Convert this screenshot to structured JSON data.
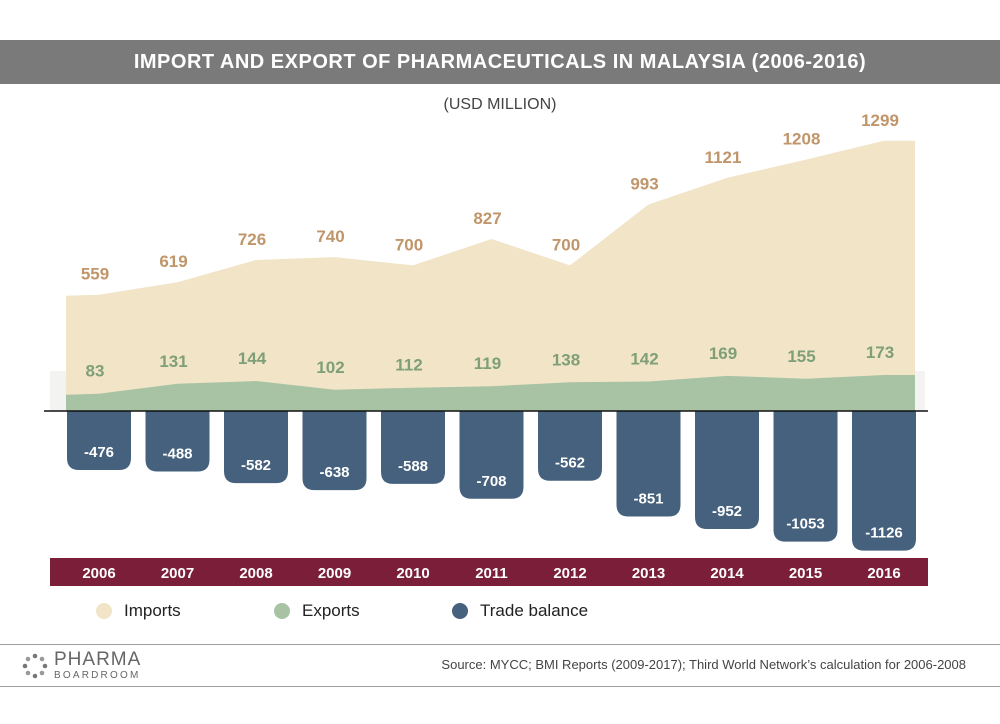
{
  "title": "IMPORT AND EXPORT OF PHARMACEUTICALS IN MALAYSIA (2006-2016)",
  "subtitle": "(USD MILLION)",
  "legend": [
    {
      "label": "Imports",
      "color": "#f1e4c7"
    },
    {
      "label": "Exports",
      "color": "#a7c3a4"
    },
    {
      "label": "Trade balance",
      "color": "#45617d"
    }
  ],
  "logo": {
    "top": "PHARMA",
    "bottom": "BOARDROOM"
  },
  "source": "Source:  MYCC; BMI Reports (2009-2017); Third World Network’s calculation for 2006-2008",
  "colors": {
    "imports": "#f1e4c7",
    "exports": "#a7c3a4",
    "balance": "#45617d",
    "imports_label": "#c1956a",
    "exports_label": "#7e9f78",
    "year_bar": "#7b1e3a",
    "title_bar": "#7a7a7a"
  },
  "chart_data": {
    "type": "area",
    "categories": [
      "2006",
      "2007",
      "2008",
      "2009",
      "2010",
      "2011",
      "2012",
      "2013",
      "2014",
      "2015",
      "2016"
    ],
    "series": [
      {
        "name": "Imports",
        "kind": "area",
        "values": [
          559,
          619,
          726,
          740,
          700,
          827,
          700,
          993,
          1121,
          1208,
          1299
        ]
      },
      {
        "name": "Exports",
        "kind": "area",
        "values": [
          83,
          131,
          144,
          102,
          112,
          119,
          138,
          142,
          169,
          155,
          173
        ]
      },
      {
        "name": "Trade balance",
        "kind": "bar",
        "values": [
          -476,
          -488,
          -582,
          -638,
          -588,
          -708,
          -562,
          -851,
          -952,
          -1053,
          -1126
        ]
      }
    ],
    "legend_position": "bottom-left",
    "grid": false
  }
}
